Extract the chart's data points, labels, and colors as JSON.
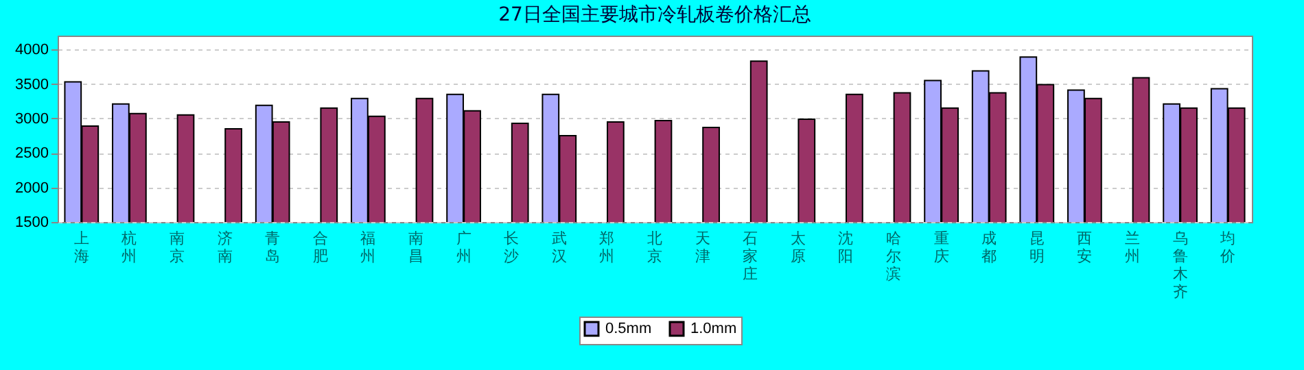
{
  "chart_data": {
    "type": "bar",
    "title": "27日全国主要城市冷轧板卷价格汇总",
    "categories": [
      "上海",
      "杭州",
      "南京",
      "济南",
      "青岛",
      "合肥",
      "福州",
      "南昌",
      "广州",
      "长沙",
      "武汉",
      "郑州",
      "北京",
      "天津",
      "石家庄",
      "太原",
      "沈阳",
      "哈尔滨",
      "重庆",
      "成都",
      "昆明",
      "西安",
      "兰州",
      "乌鲁木齐",
      "均价"
    ],
    "series": [
      {
        "name": "0.5mm",
        "color": "#aaaaff",
        "values": [
          3530,
          3210,
          null,
          null,
          3190,
          null,
          3290,
          null,
          3350,
          null,
          3350,
          null,
          null,
          null,
          null,
          null,
          null,
          null,
          3550,
          3690,
          3890,
          3410,
          null,
          3210,
          3430
        ]
      },
      {
        "name": "1.0mm",
        "color": "#993366",
        "values": [
          2890,
          3070,
          3050,
          2850,
          2950,
          3150,
          3030,
          3290,
          3110,
          2930,
          2750,
          2950,
          2970,
          2870,
          3830,
          2990,
          3350,
          3370,
          3150,
          3370,
          3490,
          3290,
          3590,
          3150,
          3150
        ]
      }
    ],
    "ylim": [
      1500,
      4200
    ],
    "yticks": [
      1500,
      2000,
      2500,
      3000,
      3500,
      4000
    ],
    "grid": "y",
    "legend": "bottom"
  }
}
